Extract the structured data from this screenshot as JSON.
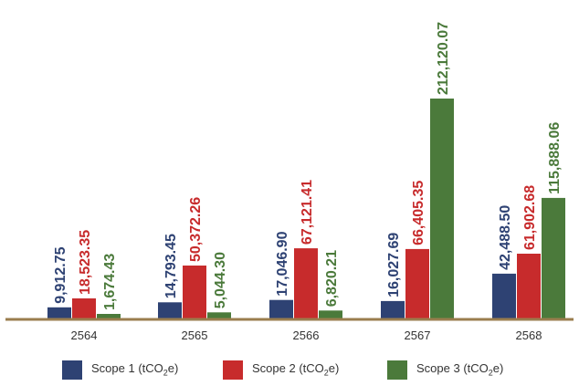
{
  "chart_data": {
    "type": "bar",
    "title": "",
    "xlabel": "",
    "ylabel": "",
    "categories": [
      "2564",
      "2565",
      "2566",
      "2567",
      "2568"
    ],
    "series": [
      {
        "name": "Scope 1 (tCO2e)",
        "legend_main": "Scope 1 (tCO",
        "legend_sub": "2",
        "legend_tail": "e)",
        "color": "#2e4273",
        "values": [
          9912.75,
          14793.45,
          17046.9,
          16027.69,
          42488.5
        ],
        "labels": [
          "9,912.75",
          "14,793.45",
          "17,046.90",
          "16,027.69",
          "42,488.50"
        ]
      },
      {
        "name": "Scope 2 (tCO2e)",
        "legend_main": "Scope 2 (tCO",
        "legend_sub": "2",
        "legend_tail": "e)",
        "color": "#c72b2c",
        "values": [
          18523.35,
          50372.26,
          67121.41,
          66405.35,
          61902.68
        ],
        "labels": [
          "18,523.35",
          "50,372.26",
          "67,121.41",
          "66,405.35",
          "61,902.68"
        ]
      },
      {
        "name": "Scope 3 (tCO2e)",
        "legend_main": "Scope 3 (tCO",
        "legend_sub": "2",
        "legend_tail": "e)",
        "color": "#4b7a3b",
        "values": [
          1674.43,
          5044.3,
          6820.21,
          212120.07,
          115888.06
        ],
        "labels": [
          "1,674.43",
          "5,044.30",
          "6,820.21",
          "212,120.07",
          "115,888.06"
        ]
      }
    ],
    "ylim": [
      0,
      212120.07
    ],
    "grid": false,
    "legend": "bottom",
    "axis_color": "#9a7d4e"
  }
}
